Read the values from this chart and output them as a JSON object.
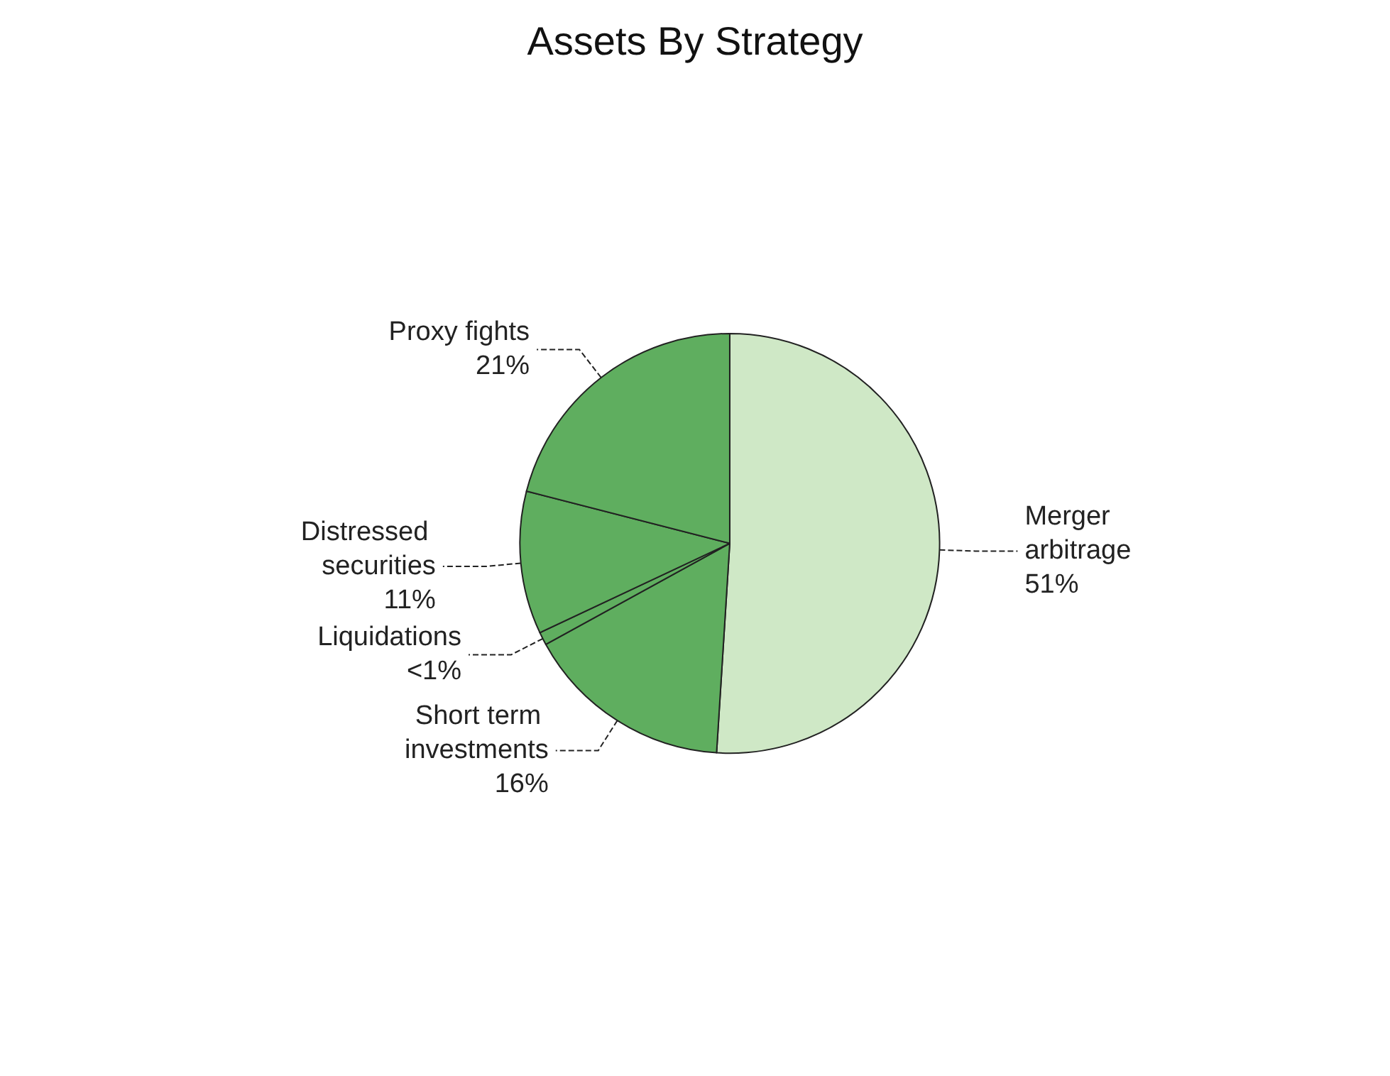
{
  "chart_data": {
    "type": "pie",
    "title": "Assets By Strategy",
    "categories": [
      "Merger arbitrage",
      "Short term investments",
      "Liquidations",
      "Distressed securities",
      "Proxy fights"
    ],
    "values": [
      51,
      16,
      1,
      11,
      21
    ],
    "value_labels": [
      "51%",
      "16%",
      "<1%",
      "11%",
      "21%"
    ],
    "colors": [
      "#cfe8c6",
      "#5fae5f",
      "#5fae5f",
      "#5fae5f",
      "#5fae5f"
    ]
  }
}
